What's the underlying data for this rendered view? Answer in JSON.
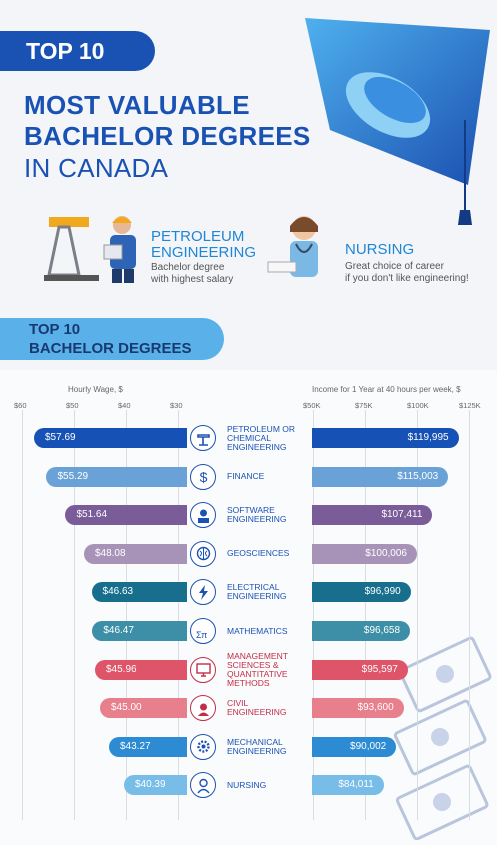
{
  "header": {
    "badge": "TOP 10",
    "title_lines": [
      "MOST VALUABLE",
      "BACHELOR DEGREES",
      "IN CANADA"
    ]
  },
  "features": [
    {
      "title": "PETROLEUM\nENGINEERING",
      "desc": "Bachelor degree\nwith highest salary"
    },
    {
      "title": "NURSING",
      "desc": "Great choice of career\nif you don't like engineering!"
    }
  ],
  "section": {
    "line1": "TOP 10",
    "line2": "BACHELOR DEGREES"
  },
  "colors": {
    "primary": "#1a52b4",
    "light_blue": "#5ab0e8",
    "title": "#1a52b4",
    "accent": "#1f86d6"
  },
  "chart_data": {
    "type": "bar",
    "left_axis": {
      "label": "Hourly Wage, $",
      "ticks": [
        "$60",
        "$50",
        "$40",
        "$30"
      ],
      "range": [
        60,
        30
      ]
    },
    "right_axis": {
      "label": "Income for 1 Year at 40 hours per week, $",
      "ticks": [
        "$50K",
        "$75K",
        "$100K",
        "$125K"
      ],
      "range": [
        50000,
        125000
      ]
    },
    "categories": [
      "PETROLEUM OR\nCHEMICAL\nENGINEERING",
      "FINANCE",
      "SOFTWARE\nENGINEERING",
      "GEOSCIENCES",
      "ELECTRICAL\nENGINEERING",
      "MATHEMATICS",
      "MANAGEMENT\nSCIENCES &\nQUANTITATIVE\nMETHODS",
      "CIVIL\nENGINEERING",
      "MECHANICAL\nENGINEERING",
      "NURSING"
    ],
    "hourly_values": [
      57.69,
      55.29,
      51.64,
      48.08,
      46.63,
      46.47,
      45.96,
      45.0,
      43.27,
      40.39
    ],
    "hourly_labels": [
      "$57.69",
      "$55.29",
      "$51.64",
      "$48.08",
      "$46.63",
      "$46.47",
      "$45.96",
      "$45.00",
      "$43.27",
      "$40.39"
    ],
    "annual_values": [
      119995,
      115003,
      107411,
      100006,
      96990,
      96658,
      95597,
      93600,
      90002,
      84011
    ],
    "annual_labels": [
      "$119,995",
      "$115,003",
      "$107,411",
      "$100,006",
      "$96,990",
      "$96,658",
      "$95,597",
      "$93,600",
      "$90,002",
      "$84,011"
    ],
    "colors": [
      "#1652b5",
      "#6aa2d8",
      "#7a5c99",
      "#a793b8",
      "#186f8d",
      "#3c8fa6",
      "#de5468",
      "#e77f8d",
      "#2c8bd3",
      "#77bde8"
    ],
    "icons": [
      "oil-pump-icon",
      "dollar-icon",
      "developer-icon",
      "brain-icon",
      "lightning-icon",
      "math-icon",
      "monitor-chart-icon",
      "worker-icon",
      "gear-head-icon",
      "nurse-icon"
    ],
    "grid": true
  }
}
